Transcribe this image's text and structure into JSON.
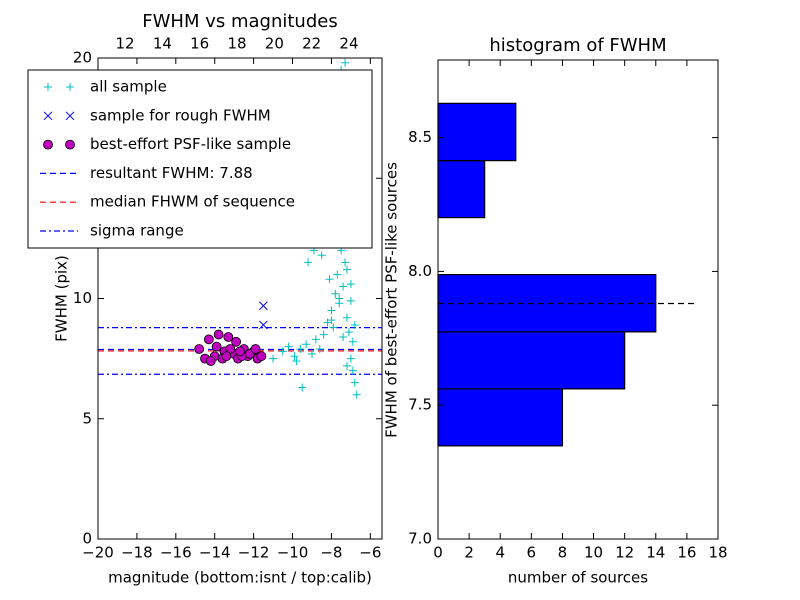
{
  "chart_data": [
    {
      "type": "scatter",
      "title": "FWHM vs magnitudes",
      "xlabel": "magnitude (bottom:isnt / top:calib)",
      "ylabel": "FWHM (pix)",
      "xlim": [
        -20,
        -5.4
      ],
      "ylim": [
        0,
        20
      ],
      "xticks": [
        {
          "value": -20,
          "label": "−20"
        },
        {
          "value": -18,
          "label": "−18"
        },
        {
          "value": -16,
          "label": "−16"
        },
        {
          "value": -14,
          "label": "−14"
        },
        {
          "value": -12,
          "label": "−12"
        },
        {
          "value": -10,
          "label": "−10"
        },
        {
          "value": -8,
          "label": "−8"
        },
        {
          "value": -6,
          "label": "−6"
        }
      ],
      "yticks": [
        0,
        5,
        10,
        15,
        20
      ],
      "x2lim": [
        10.55,
        25.77
      ],
      "x2ticks": [
        12,
        14,
        16,
        18,
        20,
        22,
        24
      ],
      "legend": "upper left",
      "series": [
        {
          "name": "all sample",
          "color": "#00bfbf",
          "marker": "+",
          "x": [
            -10.5,
            -10.2,
            -9.9,
            -9.6,
            -9.3,
            -9.0,
            -8.8,
            -8.6,
            -8.4,
            -8.2,
            -8.0,
            -7.9,
            -7.8,
            -7.7,
            -7.6,
            -7.5,
            -7.4,
            -7.3,
            -7.2,
            -7.1,
            -7.0,
            -6.9,
            -6.8,
            -6.7,
            -8.5,
            -8.3,
            -8.1,
            -7.9,
            -7.7,
            -7.5,
            -7.3,
            -7.1,
            -6.9,
            -7.6,
            -7.4,
            -7.2,
            -7.0,
            -7.8,
            -7.5,
            -7.3,
            -7.1,
            -8.9,
            -9.2,
            -9.5,
            -8.7,
            -7.0,
            -6.8,
            -7.4,
            -7.2,
            -7.6,
            -8.0,
            -9.8,
            -11.0,
            -8.2,
            -7.3
          ],
          "values": [
            7.8,
            8.0,
            7.6,
            7.9,
            8.1,
            7.7,
            8.3,
            7.9,
            8.5,
            9.0,
            9.5,
            8.8,
            10.2,
            11.0,
            9.8,
            12.0,
            10.5,
            11.5,
            9.2,
            8.6,
            7.5,
            7.0,
            6.5,
            6.0,
            11.8,
            12.5,
            10.8,
            13.5,
            14.5,
            13.0,
            15.0,
            12.8,
            8.2,
            16.5,
            14.0,
            11.2,
            9.9,
            17.5,
            19.5,
            18.0,
            13.8,
            12.0,
            11.5,
            6.3,
            12.3,
            10.6,
            8.9,
            8.4,
            7.2,
            10.0,
            9.1,
            7.4,
            7.5,
            14.8,
            19.8
          ]
        },
        {
          "name": "sample for rough FWHM",
          "color": "#0000ff",
          "marker": "x",
          "x": [
            -11.5,
            -11.5
          ],
          "values": [
            9.7,
            8.9
          ]
        },
        {
          "name": "best-effort PSF-like sample",
          "color": "#bf00bf",
          "marker": "o",
          "x": [
            -14.8,
            -14.5,
            -14.3,
            -14.0,
            -13.8,
            -13.5,
            -13.3,
            -13.0,
            -12.8,
            -12.5,
            -12.3,
            -12.0,
            -11.8,
            -11.6,
            -14.2,
            -13.9,
            -13.6,
            -13.2,
            -12.9,
            -12.6,
            -12.2,
            -11.9,
            -13.4,
            -12.7
          ],
          "values": [
            7.9,
            7.5,
            8.3,
            7.6,
            8.5,
            7.8,
            8.4,
            7.7,
            7.5,
            7.9,
            7.6,
            7.8,
            7.5,
            7.6,
            7.4,
            8.0,
            7.5,
            7.9,
            8.2,
            7.6,
            7.7,
            7.9,
            7.6,
            7.8
          ]
        }
      ],
      "hlines": [
        {
          "name": "resultant FWHM: 7.88",
          "color": "#0000ff",
          "dash": "dashed",
          "values": [
            7.88
          ]
        },
        {
          "name": "median FHWM of sequence",
          "color": "#ff0000",
          "dash": "dashed",
          "values": [
            7.82
          ]
        },
        {
          "name": "sigma range",
          "color": "#0000ff",
          "dash": "dashdot",
          "values": [
            6.85,
            8.79
          ]
        }
      ]
    },
    {
      "type": "histogram",
      "orientation": "horizontal",
      "title": "histogram of FWHM",
      "xlabel": "number of sources",
      "ylabel": "FWHM of best-effort PSF-like sources",
      "xlim": [
        0,
        18
      ],
      "ylim": [
        7.0,
        8.79
      ],
      "xticks": [
        0,
        2,
        4,
        6,
        8,
        10,
        12,
        14,
        16,
        18
      ],
      "yticks": [
        {
          "value": 7.0,
          "label": "7.0"
        },
        7.5,
        {
          "value": 8.0,
          "label": "8.0"
        },
        8.5
      ],
      "color": "#0000ff",
      "bins": [
        7.348,
        7.561,
        7.774,
        7.988,
        8.201,
        8.414,
        8.628
      ],
      "counts": [
        8,
        12,
        14,
        0,
        3,
        5
      ],
      "hline": {
        "value": 7.88,
        "xmax": 16.65,
        "color": "#000000"
      }
    }
  ]
}
